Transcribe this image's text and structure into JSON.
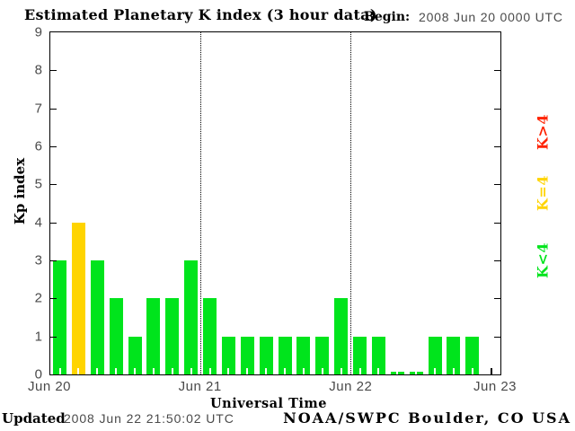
{
  "title": "Estimated Planetary K index (3 hour data)",
  "begin": {
    "label": "Begin:",
    "value": "2008 Jun 20 0000 UTC"
  },
  "footer": {
    "updated_label": "Updated",
    "updated_value": "2008 Jun 22 21:50:02 UTC",
    "credit": "NOAA/SWPC Boulder, CO USA"
  },
  "legend": [
    {
      "label": "K>4",
      "color": "#ff2200"
    },
    {
      "label": "K=4",
      "color": "#ffd400"
    },
    {
      "label": "K<4",
      "color": "#00e41c"
    }
  ],
  "chart_data": {
    "type": "bar",
    "title": "Estimated Planetary K index (3 hour data)",
    "xlabel": "Universal Time",
    "ylabel": "Kp index",
    "ylim": [
      0,
      9
    ],
    "yticks": [
      0,
      1,
      2,
      3,
      4,
      5,
      6,
      7,
      8,
      9
    ],
    "x_day_labels": [
      "Jun 20",
      "Jun 21",
      "Jun 22",
      "Jun 23"
    ],
    "begin_utc": "2008 Jun 20 0000 UTC",
    "hours_per_bar": 3,
    "days_shown": 3,
    "slots_total": 24,
    "values": [
      3,
      4,
      3,
      2,
      1,
      2,
      2,
      3,
      2,
      1,
      1,
      1,
      1,
      1,
      1,
      2,
      1,
      1,
      0,
      0,
      1,
      1,
      1
    ],
    "color_rule": {
      "below_4": "#00e41c",
      "equal_4": "#ffd400",
      "above_4": "#ff2200"
    },
    "grid": "dotted vertical lines at day boundaries",
    "legend_position": "right side, rotated 90deg"
  }
}
